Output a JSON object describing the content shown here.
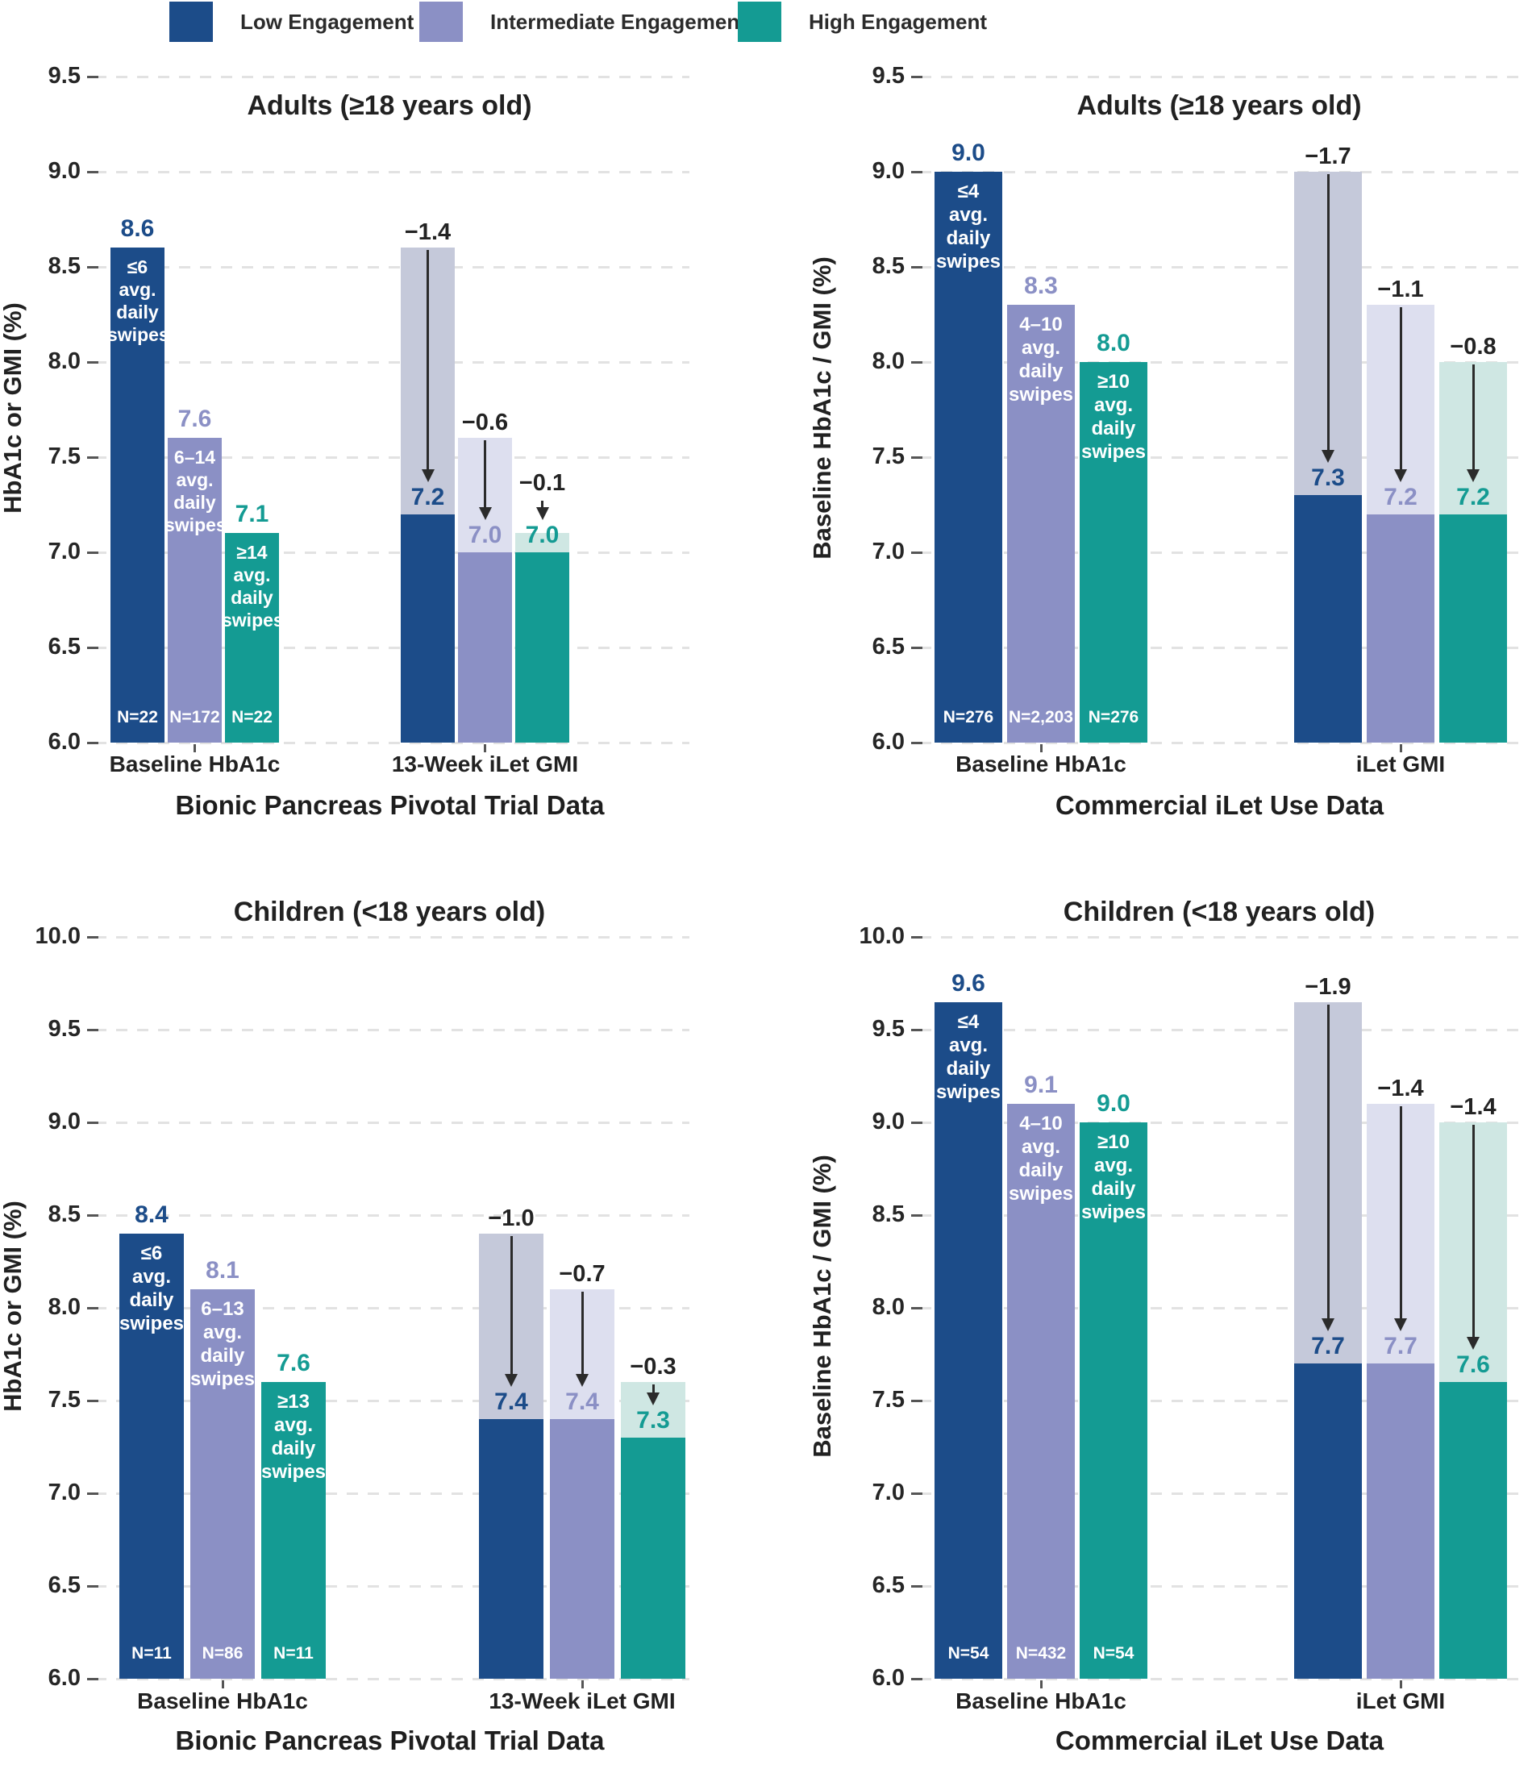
{
  "series": {
    "low": {
      "label": "Low Engagement",
      "color": "#1C4C89",
      "light": "#C5C9DA"
    },
    "intermediate": {
      "label": "Intermediate Engagement",
      "color": "#8B90C5",
      "light": "#DDDFEF"
    },
    "high": {
      "label": "High Engagement",
      "color": "#149B93",
      "light": "#CFE7E3"
    }
  },
  "legend_order": [
    "low",
    "intermediate",
    "high"
  ],
  "colors": {
    "grid": "#e2e2e2",
    "delta_text": "#232323",
    "axis_text": "#262626"
  },
  "chart_data": [
    {
      "id": "pivotal-adults",
      "type": "bar",
      "title": "Adults (≥18 years old)",
      "ylabel": "HbA1c or GMI (%)",
      "footer": "Bionic Pancreas Pivotal Trial Data",
      "ylim": [
        6.0,
        9.5
      ],
      "yticks": [
        "9.5",
        "9.0",
        "8.5",
        "8.0",
        "7.5",
        "7.0",
        "6.5",
        "6.0"
      ],
      "groups": [
        {
          "label": "Baseline HbA1c",
          "kind": "baseline",
          "bars": [
            {
              "series": "low",
              "value": "8.6",
              "inner": [
                "≤6",
                "avg.",
                "daily",
                "swipes"
              ],
              "n": "N=22"
            },
            {
              "series": "intermediate",
              "value": "7.6",
              "inner": [
                "6–14",
                "avg.",
                "daily",
                "swipes"
              ],
              "n": "N=172"
            },
            {
              "series": "high",
              "value": "7.1",
              "inner": [
                "≥14",
                "avg.",
                "daily",
                "swipes"
              ],
              "n": "N=22"
            }
          ]
        },
        {
          "label": "13-Week iLet GMI",
          "kind": "change",
          "bars": [
            {
              "series": "low",
              "value": "7.2",
              "from": "8.6",
              "delta": "−1.4"
            },
            {
              "series": "intermediate",
              "value": "7.0",
              "from": "7.6",
              "delta": "−0.6"
            },
            {
              "series": "high",
              "value": "7.0",
              "from": "7.1",
              "delta": "−0.1"
            }
          ]
        }
      ]
    },
    {
      "id": "commercial-adults",
      "type": "bar",
      "title": "Adults (≥18 years old)",
      "ylabel": "Baseline HbA1c / GMI (%)",
      "footer": "Commercial iLet Use Data",
      "ylim": [
        6.0,
        9.5
      ],
      "yticks": [
        "9.5",
        "9.0",
        "8.5",
        "8.0",
        "7.5",
        "7.0",
        "6.5",
        "6.0"
      ],
      "groups": [
        {
          "label": "Baseline HbA1c",
          "kind": "baseline",
          "bars": [
            {
              "series": "low",
              "value": "9.0",
              "inner": [
                "≤4",
                "avg.",
                "daily",
                "swipes"
              ],
              "n": "N=276"
            },
            {
              "series": "intermediate",
              "value": "8.3",
              "inner": [
                "4–10",
                "avg.",
                "daily",
                "swipes"
              ],
              "n": "N=2,203"
            },
            {
              "series": "high",
              "value": "8.0",
              "inner": [
                "≥10",
                "avg.",
                "daily",
                "swipes"
              ],
              "n": "N=276"
            }
          ]
        },
        {
          "label": "iLet GMI",
          "kind": "change",
          "bars": [
            {
              "series": "low",
              "value": "7.3",
              "from": "9.0",
              "delta": "−1.7"
            },
            {
              "series": "intermediate",
              "value": "7.2",
              "from": "8.3",
              "delta": "−1.1"
            },
            {
              "series": "high",
              "value": "7.2",
              "from": "8.0",
              "delta": "−0.8"
            }
          ]
        }
      ]
    },
    {
      "id": "pivotal-children",
      "type": "bar",
      "title": "Children (<18 years old)",
      "ylabel": "HbA1c or GMI (%)",
      "footer": "Bionic Pancreas Pivotal Trial Data",
      "ylim": [
        6.0,
        10.0
      ],
      "yticks": [
        "10.0",
        "9.5",
        "9.0",
        "8.5",
        "8.0",
        "7.5",
        "7.0",
        "6.5",
        "6.0"
      ],
      "groups": [
        {
          "label": "Baseline HbA1c",
          "kind": "baseline",
          "bars": [
            {
              "series": "low",
              "value": "8.4",
              "inner": [
                "≤6",
                "avg.",
                "daily",
                "swipes"
              ],
              "n": "N=11"
            },
            {
              "series": "intermediate",
              "value": "8.1",
              "inner": [
                "6–13",
                "avg.",
                "daily",
                "swipes"
              ],
              "n": "N=86"
            },
            {
              "series": "high",
              "value": "7.6",
              "inner": [
                "≥13",
                "avg.",
                "daily",
                "swipes"
              ],
              "n": "N=11"
            }
          ]
        },
        {
          "label": "13-Week iLet GMI",
          "kind": "change",
          "bars": [
            {
              "series": "low",
              "value": "7.4",
              "from": "8.4",
              "delta": "−1.0"
            },
            {
              "series": "intermediate",
              "value": "7.4",
              "from": "8.1",
              "delta": "−0.7"
            },
            {
              "series": "high",
              "value": "7.3",
              "from": "7.6",
              "delta": "−0.3"
            }
          ]
        }
      ]
    },
    {
      "id": "commercial-children",
      "type": "bar",
      "title": "Children (<18 years old)",
      "ylabel": "Baseline HbA1c / GMI (%)",
      "footer": "Commercial iLet Use Data",
      "ylim": [
        6.0,
        10.0
      ],
      "yticks": [
        "10.0",
        "9.5",
        "9.0",
        "8.5",
        "8.0",
        "7.5",
        "7.0",
        "6.5",
        "6.0"
      ],
      "groups": [
        {
          "label": "Baseline HbA1c",
          "kind": "baseline",
          "bars": [
            {
              "series": "low",
              "value": "9.6",
              "bar_top": "9.65",
              "inner": [
                "≤4",
                "avg.",
                "daily",
                "swipes"
              ],
              "n": "N=54"
            },
            {
              "series": "intermediate",
              "value": "9.1",
              "inner": [
                "4–10",
                "avg.",
                "daily",
                "swipes"
              ],
              "n": "N=432"
            },
            {
              "series": "high",
              "value": "9.0",
              "inner": [
                "≥10",
                "avg.",
                "daily",
                "swipes"
              ],
              "n": "N=54"
            }
          ]
        },
        {
          "label": "iLet GMI",
          "kind": "change",
          "bars": [
            {
              "series": "low",
              "value": "7.7",
              "from": "9.6",
              "from_draw": "9.65",
              "delta": "−1.9"
            },
            {
              "series": "intermediate",
              "value": "7.7",
              "from": "9.1",
              "delta": "−1.4"
            },
            {
              "series": "high",
              "value": "7.6",
              "from": "9.0",
              "delta": "−1.4"
            }
          ]
        }
      ]
    }
  ]
}
